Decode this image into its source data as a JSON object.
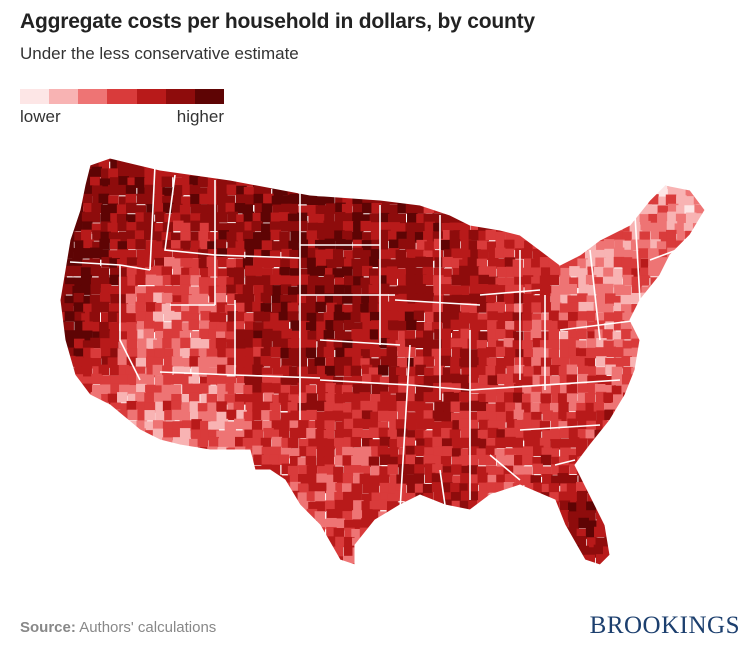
{
  "title": "Aggregate costs per household in dollars, by county",
  "subtitle": "Under the less conservative estimate",
  "legend": {
    "low_label": "lower",
    "high_label": "higher",
    "colors": [
      "#fde6e6",
      "#f8b3b3",
      "#ee7474",
      "#d93b3b",
      "#b81a1a",
      "#8e0c0c",
      "#5e0404"
    ]
  },
  "source": {
    "label": "Source:",
    "text": " Authors' calculations"
  },
  "logo": "BROOKINGS",
  "map": {
    "description_levels": "county choropleth, darker = higher cost",
    "state_border_color": "#ffffff"
  }
}
